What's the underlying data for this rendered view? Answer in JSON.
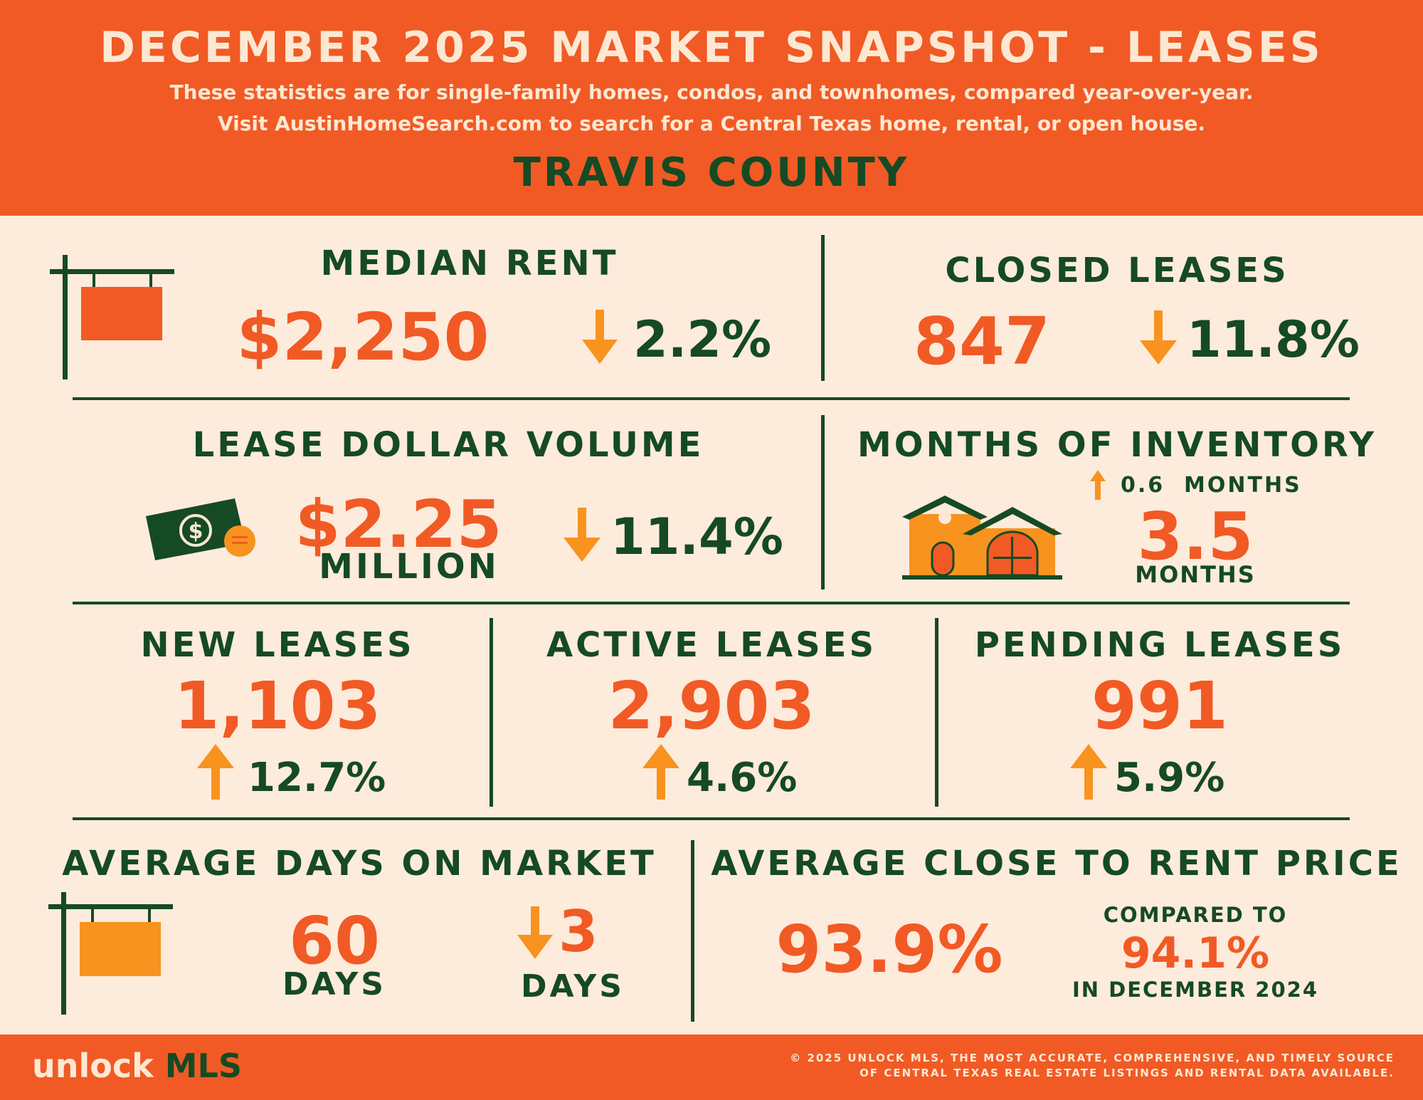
{
  "header": {
    "title": "DECEMBER 2025 MARKET SNAPSHOT - LEASES",
    "line1": "These statistics are for single-family homes, condos, and townhomes, compared year-over-year.",
    "line2": "Visit AustinHomeSearch.com to search for a Central Texas home, rental, or open house.",
    "county": "TRAVIS COUNTY"
  },
  "median_rent": {
    "label": "MEDIAN RENT",
    "value": "$2,250",
    "change": "2.2%",
    "direction": "down"
  },
  "closed_leases": {
    "label": "CLOSED LEASES",
    "value": "847",
    "change": "11.8%",
    "direction": "down"
  },
  "lease_volume": {
    "label": "LEASE DOLLAR VOLUME",
    "value": "$2.25",
    "unit": "MILLION",
    "change": "11.4%",
    "direction": "down"
  },
  "months_inventory": {
    "label": "MONTHS OF INVENTORY",
    "change": "0.6  MONTHS",
    "direction": "up",
    "value": "3.5",
    "unit": "MONTHS"
  },
  "new_leases": {
    "label": "NEW LEASES",
    "value": "1,103",
    "change": "12.7%",
    "direction": "up"
  },
  "active_leases": {
    "label": "ACTIVE LEASES",
    "value": "2,903",
    "change": "4.6%",
    "direction": "up"
  },
  "pending_leases": {
    "label": "PENDING LEASES",
    "value": "991",
    "change": "5.9%",
    "direction": "up"
  },
  "days_on_market": {
    "label": "AVERAGE DAYS ON MARKET",
    "value": "60",
    "unit": "DAYS",
    "change": "3",
    "change_unit": "DAYS",
    "direction": "down"
  },
  "close_to_rent": {
    "label": "AVERAGE CLOSE TO RENT PRICE",
    "value": "93.9%",
    "compare_label": "COMPARED TO",
    "compare_value": "94.1%",
    "compare_period": "IN DECEMBER 2024"
  },
  "footer": {
    "logo_a": "unlock",
    "logo_b": "MLS",
    "copy1": "© 2025 UNLOCK MLS, THE MOST ACCURATE, COMPREHENSIVE, AND TIMELY SOURCE",
    "copy2": "OF CENTRAL TEXAS REAL ESTATE LISTINGS AND RENTAL DATA AVAILABLE."
  },
  "colors": {
    "orange": "#f15a24",
    "light_orange": "#f7931e",
    "green": "#154a24",
    "cream": "#fdebdc"
  }
}
